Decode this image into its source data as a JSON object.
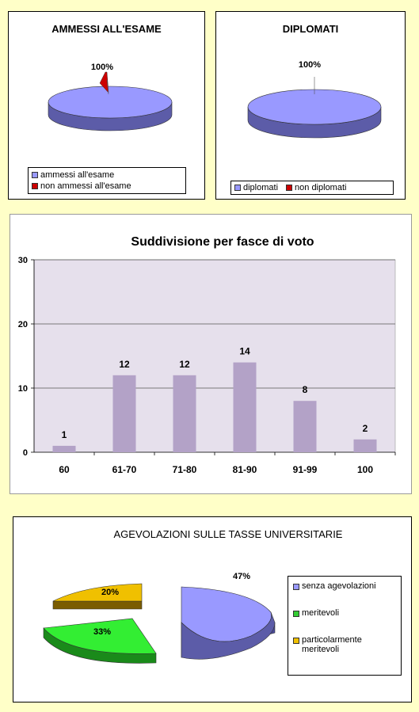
{
  "charts": {
    "ammessi": {
      "title": "AMMESSI ALL'ESAME",
      "slice_label": "100%",
      "legend": [
        {
          "label": "ammessi all'esame",
          "color": "#9999ff"
        },
        {
          "label": "non ammessi all'esame",
          "color": "#cc0000"
        }
      ]
    },
    "diplomati": {
      "title": "DIPLOMATI",
      "slice_label": "100%",
      "legend": [
        {
          "label": "diplomati",
          "color": "#9999ff"
        },
        {
          "label": "non diplomati",
          "color": "#cc0000"
        }
      ]
    },
    "fasce": {
      "title": "Suddivisione per fasce di voto"
    },
    "tasse": {
      "title": "AGEVOLAZIONI SULLE TASSE UNIVERSITARIE",
      "legend": [
        {
          "label": "senza agevolazioni",
          "color": "#9999ff"
        },
        {
          "label": "meritevoli",
          "color": "#33cc33"
        },
        {
          "label": "particolarmente meritevoli",
          "color": "#f0c000"
        }
      ],
      "slice_labels": [
        "47%",
        "33%",
        "20%"
      ]
    }
  },
  "chart_data": [
    {
      "type": "pie",
      "title": "AMMESSI ALL'ESAME",
      "categories": [
        "ammessi all'esame",
        "non ammessi all'esame"
      ],
      "values": [
        100,
        0
      ],
      "data_labels": [
        "100%"
      ],
      "legend": "bottom"
    },
    {
      "type": "pie",
      "title": "DIPLOMATI",
      "categories": [
        "diplomati",
        "non diplomati"
      ],
      "values": [
        100,
        0
      ],
      "data_labels": [
        "100%"
      ],
      "legend": "bottom"
    },
    {
      "type": "bar",
      "title": "Suddivisione per fasce di voto",
      "categories": [
        "60",
        "61-70",
        "71-80",
        "81-90",
        "91-99",
        "100"
      ],
      "values": [
        1,
        12,
        12,
        14,
        8,
        2
      ],
      "ylim": [
        0,
        30
      ],
      "yticks": [
        0,
        10,
        20,
        30
      ],
      "grid": true,
      "bar_color": "#b3a2c7",
      "plot_background": "#e6e0ec"
    },
    {
      "type": "pie",
      "title": "AGEVOLAZIONI SULLE TASSE UNIVERSITARIE",
      "categories": [
        "senza agevolazioni",
        "meritevoli",
        "particolarmente meritevoli"
      ],
      "values": [
        47,
        33,
        20
      ],
      "data_labels": [
        "47%",
        "33%",
        "20%"
      ],
      "legend": "right"
    }
  ]
}
